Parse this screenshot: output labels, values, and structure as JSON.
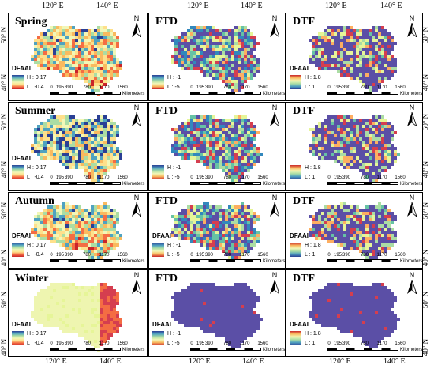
{
  "top_lon_labels": [
    "120° E",
    "140° E",
    "120° E",
    "140° E",
    "120° E",
    "140° E"
  ],
  "bottom_lon_labels": [
    "120° E",
    "140° E",
    "120° E",
    "140° E",
    "120° E",
    "140° E"
  ],
  "left_lat_labels": [
    "50° N",
    "40° N",
    "50° N",
    "40° N",
    "50° N",
    "40° N",
    "50° N",
    "40° N"
  ],
  "right_lat_labels": [
    "50° N",
    "40° N",
    "50° N",
    "40° N",
    "50° N",
    "40° N",
    "50° N",
    "40° N"
  ],
  "north_label": "N",
  "legend_title": "DFAAI",
  "scale": {
    "labels": [
      "0",
      "195",
      "390",
      "780",
      "1170",
      "1560"
    ],
    "unit": "Kilometers"
  },
  "colors": {
    "high": "#2a3f95",
    "mid_high": "#4fa2c0",
    "mid": "#f2f7b7",
    "mid_low": "#f9ba5f",
    "low": "#c9242a",
    "uniform": "#5b4fa6"
  },
  "rows": [
    {
      "season": "Spring",
      "panels": [
        {
          "title": "Spring",
          "legend": {
            "title": "DFAAI",
            "high": "H : 0.17",
            "low": "L : -0.4",
            "ramp": "dfaai"
          }
        },
        {
          "title": "FTD",
          "legend": {
            "title": "",
            "high": "H : -1",
            "low": "L : -5",
            "ramp": "ftd"
          }
        },
        {
          "title": "DTF",
          "legend": {
            "title": "DFAAI",
            "high": "H : 1.8",
            "low": "L : 1",
            "ramp": "dtf"
          }
        }
      ]
    },
    {
      "season": "Summer",
      "panels": [
        {
          "title": "Summer",
          "legend": {
            "title": "DFAAI",
            "high": "H : 0.17",
            "low": "L : -0.4",
            "ramp": "dfaai"
          }
        },
        {
          "title": "FTD",
          "legend": {
            "title": "",
            "high": "H : -1",
            "low": "L : -5",
            "ramp": "ftd"
          }
        },
        {
          "title": "DTF",
          "legend": {
            "title": "",
            "high": "H : 1.8",
            "low": "L : 1",
            "ramp": "dtf"
          }
        }
      ]
    },
    {
      "season": "Autumn",
      "panels": [
        {
          "title": "Autumn",
          "legend": {
            "title": "DFAAI",
            "high": "H : 0.17",
            "low": "L : -0.4",
            "ramp": "dfaai"
          }
        },
        {
          "title": "FTD",
          "legend": {
            "title": "DFAAI",
            "high": "H : -1",
            "low": "L : -5",
            "ramp": "ftd"
          }
        },
        {
          "title": "DTF",
          "legend": {
            "title": "DFAAI",
            "high": "H : 1.8",
            "low": "L : 1",
            "ramp": "dtf"
          }
        }
      ]
    },
    {
      "season": "Winter",
      "panels": [
        {
          "title": "Winter",
          "legend": {
            "title": "DFAAI",
            "high": "H : 0.17",
            "low": "L : -0.4",
            "ramp": "dfaai"
          }
        },
        {
          "title": "FTD",
          "legend": {
            "title": "DFAAI",
            "high": "H : -1",
            "low": "L : -5",
            "ramp": "ftd"
          }
        },
        {
          "title": "DTF",
          "legend": {
            "title": "DFAAI",
            "high": "H : 1.8",
            "low": "L : 1",
            "ramp": "dtf"
          }
        }
      ]
    }
  ]
}
